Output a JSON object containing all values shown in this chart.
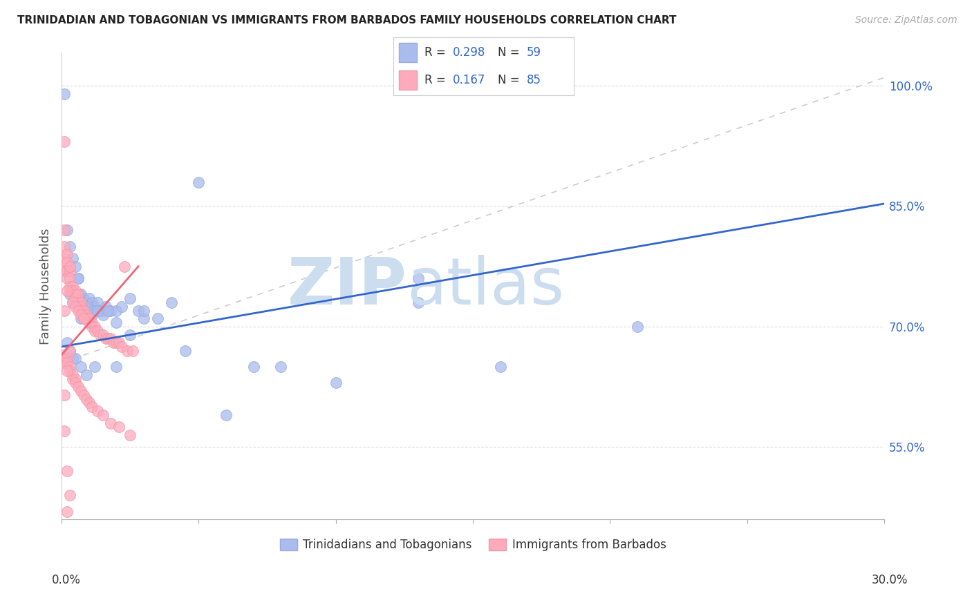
{
  "title": "TRINIDADIAN AND TOBAGONIAN VS IMMIGRANTS FROM BARBADOS FAMILY HOUSEHOLDS CORRELATION CHART",
  "source": "Source: ZipAtlas.com",
  "ylabel": "Family Households",
  "ytick_labels": [
    "55.0%",
    "70.0%",
    "85.0%",
    "100.0%"
  ],
  "ytick_values": [
    0.55,
    0.7,
    0.85,
    1.0
  ],
  "xlim": [
    0.0,
    0.3
  ],
  "ylim": [
    0.46,
    1.04
  ],
  "scatter1_color": "#aabbee",
  "scatter2_color": "#ffaabb",
  "trendline1_color": "#3366cc",
  "trendline2_color": "#ee6677",
  "diagonal_color": "#cccccc",
  "background_color": "#ffffff",
  "watermark_zip": "ZIP",
  "watermark_atlas": "atlas",
  "watermark_color": "#ccddf0",
  "legend_r_color": "#3366cc",
  "legend_n_color": "#3366cc",
  "legend_text_color": "#333333",
  "axis_text_color": "#3366cc",
  "title_color": "#222222",
  "source_color": "#aaaaaa",
  "grid_color": "#dddddd",
  "trinidadian_x": [
    0.001,
    0.002,
    0.003,
    0.004,
    0.005,
    0.006,
    0.006,
    0.007,
    0.008,
    0.009,
    0.01,
    0.011,
    0.012,
    0.013,
    0.014,
    0.015,
    0.016,
    0.018,
    0.02,
    0.022,
    0.025,
    0.028,
    0.03,
    0.035,
    0.04,
    0.045,
    0.05,
    0.06,
    0.07,
    0.08,
    0.1,
    0.13,
    0.16,
    0.21,
    0.003,
    0.004,
    0.005,
    0.006,
    0.007,
    0.008,
    0.009,
    0.01,
    0.011,
    0.012,
    0.013,
    0.015,
    0.017,
    0.02,
    0.025,
    0.03,
    0.002,
    0.003,
    0.004,
    0.005,
    0.007,
    0.009,
    0.012,
    0.02,
    0.13
  ],
  "trinidadian_y": [
    0.99,
    0.82,
    0.8,
    0.785,
    0.775,
    0.76,
    0.76,
    0.74,
    0.735,
    0.73,
    0.735,
    0.73,
    0.725,
    0.73,
    0.72,
    0.72,
    0.725,
    0.72,
    0.72,
    0.725,
    0.735,
    0.72,
    0.71,
    0.71,
    0.73,
    0.67,
    0.88,
    0.59,
    0.65,
    0.65,
    0.63,
    0.76,
    0.65,
    0.7,
    0.74,
    0.73,
    0.735,
    0.74,
    0.71,
    0.71,
    0.725,
    0.71,
    0.715,
    0.72,
    0.72,
    0.715,
    0.72,
    0.705,
    0.69,
    0.72,
    0.68,
    0.67,
    0.66,
    0.66,
    0.65,
    0.64,
    0.65,
    0.65,
    0.73
  ],
  "barbados_x": [
    0.001,
    0.001,
    0.001,
    0.001,
    0.002,
    0.002,
    0.002,
    0.002,
    0.003,
    0.003,
    0.003,
    0.003,
    0.004,
    0.004,
    0.004,
    0.005,
    0.005,
    0.005,
    0.006,
    0.006,
    0.006,
    0.007,
    0.007,
    0.007,
    0.008,
    0.008,
    0.009,
    0.009,
    0.01,
    0.01,
    0.011,
    0.011,
    0.012,
    0.012,
    0.013,
    0.014,
    0.015,
    0.016,
    0.017,
    0.018,
    0.019,
    0.02,
    0.021,
    0.022,
    0.023,
    0.024,
    0.026,
    0.001,
    0.001,
    0.001,
    0.002,
    0.002,
    0.003,
    0.003,
    0.004,
    0.004,
    0.005,
    0.005,
    0.006,
    0.007,
    0.008,
    0.009,
    0.01,
    0.011,
    0.013,
    0.015,
    0.018,
    0.021,
    0.025,
    0.003,
    0.004,
    0.005,
    0.006,
    0.007,
    0.008,
    0.001,
    0.002,
    0.003,
    0.001,
    0.002,
    0.003,
    0.001,
    0.001,
    0.002,
    0.002
  ],
  "barbados_y": [
    0.93,
    0.8,
    0.785,
    0.77,
    0.79,
    0.78,
    0.77,
    0.76,
    0.77,
    0.76,
    0.75,
    0.745,
    0.75,
    0.745,
    0.74,
    0.745,
    0.74,
    0.735,
    0.74,
    0.73,
    0.725,
    0.73,
    0.725,
    0.72,
    0.72,
    0.715,
    0.715,
    0.71,
    0.71,
    0.705,
    0.705,
    0.7,
    0.7,
    0.695,
    0.695,
    0.69,
    0.69,
    0.685,
    0.685,
    0.685,
    0.68,
    0.68,
    0.68,
    0.675,
    0.775,
    0.67,
    0.67,
    0.665,
    0.66,
    0.655,
    0.66,
    0.655,
    0.65,
    0.645,
    0.64,
    0.635,
    0.635,
    0.63,
    0.625,
    0.62,
    0.615,
    0.61,
    0.605,
    0.6,
    0.595,
    0.59,
    0.58,
    0.575,
    0.565,
    0.775,
    0.73,
    0.725,
    0.72,
    0.715,
    0.71,
    0.82,
    0.745,
    0.67,
    0.72,
    0.645,
    0.49,
    0.615,
    0.57,
    0.52,
    0.47
  ]
}
